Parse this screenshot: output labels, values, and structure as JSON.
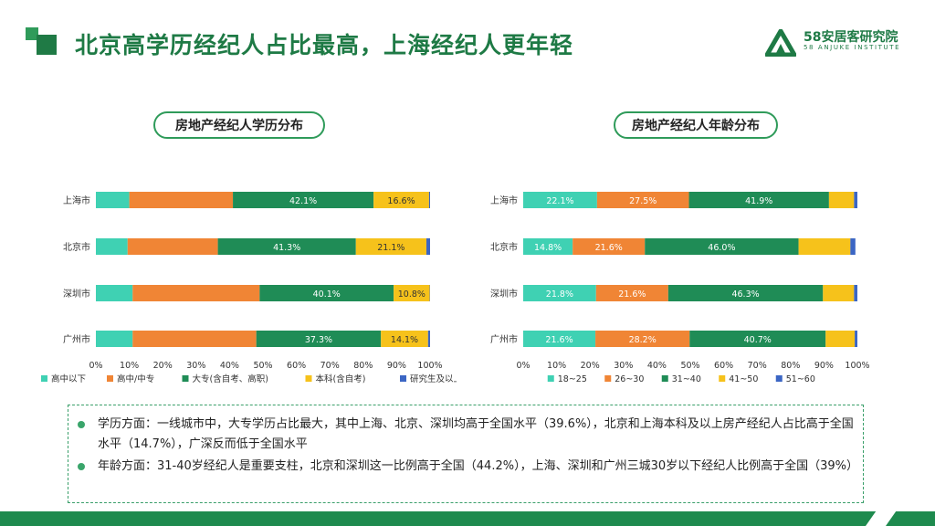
{
  "header": {
    "title": "北京高学历经纪人占比最高，上海经纪人更年轻",
    "logo_name": "58安居客研究院",
    "logo_sub": "58 ANJUKE INSTITUTE"
  },
  "colors": {
    "brand_green": "#1e7a45",
    "accent_green": "#2f9b5a"
  },
  "chart_data": [
    {
      "type": "bar",
      "orientation": "horizontal",
      "stacked": true,
      "title": "房地产经纪人学历分布",
      "categories": [
        "上海市",
        "北京市",
        "深圳市",
        "广州市"
      ],
      "series": [
        {
          "name": "高中以下",
          "color": "#3fd1b3",
          "values": [
            10.0,
            9.5,
            11.0,
            11.0
          ],
          "labels": [
            "",
            "",
            "",
            ""
          ]
        },
        {
          "name": "高中/中专",
          "color": "#f08535",
          "values": [
            31.0,
            27.0,
            38.0,
            37.0
          ],
          "labels": [
            "",
            "",
            "",
            ""
          ]
        },
        {
          "name": "大专(含自考、高职)",
          "color": "#1f8c56",
          "values": [
            42.1,
            41.3,
            40.1,
            37.3
          ],
          "labels": [
            "42.1%",
            "41.3%",
            "40.1%",
            "37.3%"
          ]
        },
        {
          "name": "本科(含自考)",
          "color": "#f6c21b",
          "values": [
            16.6,
            21.1,
            10.8,
            14.1
          ],
          "labels": [
            "16.6%",
            "21.1%",
            "10.8%",
            "14.1%"
          ]
        },
        {
          "name": "研究生及以上",
          "color": "#3b66c4",
          "values": [
            0.3,
            1.1,
            0.1,
            0.6
          ],
          "labels": [
            "",
            "",
            "",
            ""
          ]
        }
      ],
      "x_ticks": [
        "0%",
        "10%",
        "20%",
        "30%",
        "40%",
        "50%",
        "60%",
        "70%",
        "80%",
        "90%",
        "100%"
      ],
      "xlim": [
        0,
        100
      ],
      "legend": "bottom"
    },
    {
      "type": "bar",
      "orientation": "horizontal",
      "stacked": true,
      "title": "房地产经纪人年龄分布",
      "categories": [
        "上海市",
        "北京市",
        "深圳市",
        "广州市"
      ],
      "series": [
        {
          "name": "18~25",
          "color": "#3fd1b3",
          "values": [
            22.1,
            14.8,
            21.8,
            21.6
          ],
          "labels": [
            "22.1%",
            "14.8%",
            "21.8%",
            "21.6%"
          ]
        },
        {
          "name": "26~30",
          "color": "#f08535",
          "values": [
            27.5,
            21.6,
            21.6,
            28.2
          ],
          "labels": [
            "27.5%",
            "21.6%",
            "21.6%",
            "28.2%"
          ]
        },
        {
          "name": "31~40",
          "color": "#1f8c56",
          "values": [
            41.9,
            46.0,
            46.3,
            40.7
          ],
          "labels": [
            "41.9%",
            "46.0%",
            "46.3%",
            "40.7%"
          ]
        },
        {
          "name": "41~50",
          "color": "#f6c21b",
          "values": [
            7.5,
            15.5,
            9.3,
            8.7
          ],
          "labels": [
            "",
            "",
            "",
            ""
          ]
        },
        {
          "name": "51~60",
          "color": "#3b66c4",
          "values": [
            1.0,
            1.5,
            1.0,
            0.8
          ],
          "labels": [
            "",
            "",
            "",
            ""
          ]
        }
      ],
      "x_ticks": [
        "0%",
        "10%",
        "20%",
        "30%",
        "40%",
        "50%",
        "60%",
        "70%",
        "80%",
        "90%",
        "100%"
      ],
      "xlim": [
        0,
        100
      ],
      "legend": "bottom"
    }
  ],
  "summary": {
    "items": [
      "学历方面：一线城市中，大专学历占比最大，其中上海、北京、深圳均高于全国水平（39.6%），北京和上海本科及以上房产经纪人占比高于全国水平（14.7%），广深反而低于全国水平",
      "年龄方面：31-40岁经纪人是重要支柱，北京和深圳这一比例高于全国（44.2%），上海、深圳和广州三城30岁以下经纪人比例高于全国（39%）"
    ]
  }
}
